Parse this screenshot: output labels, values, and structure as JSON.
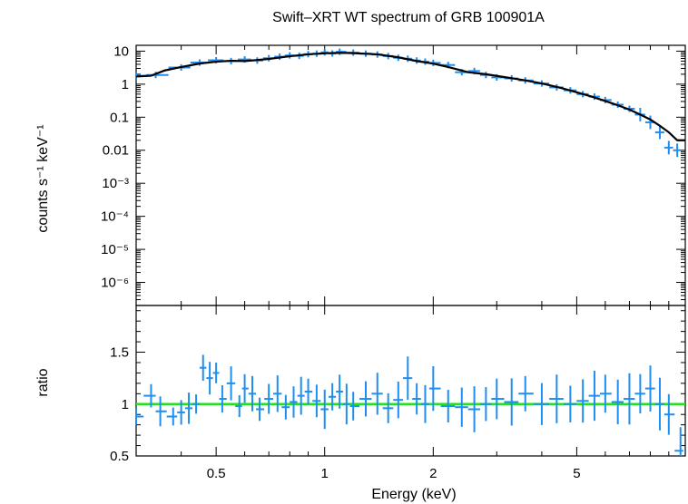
{
  "chart_data": {
    "type": "scatter",
    "title": "Swift–XRT WT spectrum of GRB 100901A",
    "xlabel": "Energy (keV)",
    "x_scale": "log",
    "xlim": [
      0.3,
      10
    ],
    "x_ticks": [
      {
        "value": 0.5,
        "label": "0.5"
      },
      {
        "value": 1,
        "label": "1"
      },
      {
        "value": 2,
        "label": "2"
      },
      {
        "value": 5,
        "label": "5"
      }
    ],
    "colors": {
      "data": "#1f8ef1",
      "model": "#000000",
      "unity_line": "#22e11e",
      "axes": "#000000"
    },
    "top_panel": {
      "ylabel": "counts s⁻¹ keV⁻¹",
      "y_scale": "log",
      "ylim": [
        2e-07,
        15
      ],
      "y_ticks": [
        {
          "value": 10,
          "label": "10"
        },
        {
          "value": 1,
          "label": "1"
        },
        {
          "value": 0.1,
          "label": "0.1"
        },
        {
          "value": 0.01,
          "label": "0.01"
        },
        {
          "value": 0.001,
          "label": "10⁻³"
        },
        {
          "value": 0.0001,
          "label": "10⁻⁴"
        },
        {
          "value": 1e-05,
          "label": "10⁻⁵"
        },
        {
          "value": 1e-06,
          "label": "10⁻⁶"
        }
      ],
      "model": {
        "x": [
          0.3,
          0.33,
          0.36,
          0.4,
          0.45,
          0.5,
          0.55,
          0.6,
          0.7,
          0.8,
          0.9,
          1.0,
          1.1,
          1.2,
          1.4,
          1.6,
          1.8,
          2.0,
          2.2,
          2.5,
          2.8,
          3.2,
          3.6,
          4.0,
          4.5,
          5.0,
          5.5,
          6.0,
          6.5,
          7.0,
          7.5,
          8.0,
          8.5,
          9.0,
          9.5,
          10.0
        ],
        "y": [
          1.7,
          1.8,
          2.6,
          3.3,
          4.2,
          4.8,
          5.1,
          5.0,
          5.8,
          7.0,
          8.0,
          8.6,
          8.9,
          8.7,
          8.0,
          6.5,
          5.0,
          4.2,
          3.3,
          2.3,
          2.0,
          1.6,
          1.3,
          1.05,
          0.78,
          0.57,
          0.42,
          0.31,
          0.23,
          0.17,
          0.12,
          0.085,
          0.055,
          0.035,
          0.02,
          0.02
        ]
      },
      "spectrum": {
        "x": [
          0.3,
          0.34,
          0.4,
          0.45,
          0.5,
          0.55,
          0.6,
          0.65,
          0.7,
          0.75,
          0.8,
          0.85,
          0.9,
          0.95,
          1.0,
          1.05,
          1.1,
          1.2,
          1.3,
          1.4,
          1.5,
          1.6,
          1.7,
          1.8,
          1.9,
          2.0,
          2.2,
          2.4,
          2.6,
          2.8,
          3.0,
          3.3,
          3.6,
          4.0,
          4.4,
          4.8,
          5.2,
          5.6,
          6.0,
          6.5,
          7.0,
          7.5,
          8.0,
          8.5,
          9.0,
          9.5
        ],
        "y": [
          1.8,
          1.9,
          3.2,
          4.5,
          5.3,
          5.0,
          5.6,
          5.2,
          6.1,
          6.8,
          7.4,
          7.2,
          8.1,
          8.4,
          9.2,
          8.5,
          9.6,
          9.0,
          8.4,
          7.9,
          7.1,
          6.3,
          5.9,
          5.2,
          4.8,
          4.4,
          3.8,
          2.3,
          2.5,
          1.9,
          1.6,
          1.5,
          1.3,
          1.05,
          0.8,
          0.65,
          0.5,
          0.42,
          0.33,
          0.24,
          0.18,
          0.12,
          0.07,
          0.035,
          0.012,
          0.01
        ]
      }
    },
    "bottom_panel": {
      "ylabel": "ratio",
      "y_scale": "linear",
      "ylim": [
        0.5,
        1.95
      ],
      "y_ticks": [
        {
          "value": 0.5,
          "label": "0.5"
        },
        {
          "value": 1,
          "label": "1"
        },
        {
          "value": 1.5,
          "label": "1.5"
        }
      ],
      "unity_line": 1.0,
      "ratio": {
        "x": [
          0.3,
          0.33,
          0.35,
          0.38,
          0.4,
          0.42,
          0.44,
          0.46,
          0.48,
          0.5,
          0.52,
          0.55,
          0.58,
          0.6,
          0.63,
          0.66,
          0.7,
          0.74,
          0.78,
          0.82,
          0.86,
          0.9,
          0.95,
          1.0,
          1.05,
          1.1,
          1.15,
          1.2,
          1.3,
          1.4,
          1.5,
          1.6,
          1.7,
          1.8,
          1.9,
          2.0,
          2.2,
          2.4,
          2.6,
          2.8,
          3.0,
          3.3,
          3.6,
          4.0,
          4.4,
          4.8,
          5.2,
          5.6,
          6.0,
          6.5,
          7.0,
          7.5,
          8.0,
          8.5,
          9.0,
          9.7
        ],
        "y": [
          0.88,
          1.08,
          0.93,
          0.88,
          0.92,
          0.96,
          1.0,
          1.35,
          1.25,
          1.3,
          1.05,
          1.2,
          0.98,
          1.15,
          1.1,
          0.95,
          1.05,
          1.1,
          0.97,
          1.02,
          1.08,
          1.12,
          1.03,
          0.95,
          1.07,
          1.12,
          1.0,
          0.98,
          1.05,
          1.1,
          0.96,
          1.04,
          1.25,
          1.05,
          1.0,
          1.15,
          0.98,
          0.97,
          0.95,
          1.0,
          1.05,
          1.02,
          1.1,
          1.0,
          1.05,
          1.0,
          1.03,
          1.08,
          1.1,
          1.02,
          1.05,
          1.1,
          1.15,
          1.0,
          0.9,
          0.55
        ]
      }
    }
  }
}
